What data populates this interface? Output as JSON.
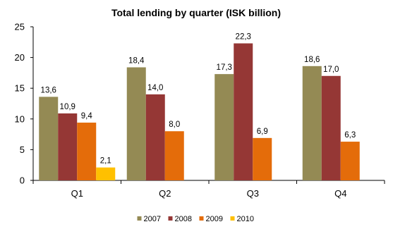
{
  "chart_data": {
    "type": "bar",
    "title": "Total lending by quarter (ISK billion)",
    "xlabel": "",
    "ylabel": "",
    "categories": [
      "Q1",
      "Q2",
      "Q3",
      "Q4"
    ],
    "ylim": [
      0,
      25
    ],
    "yticks": [
      0,
      5,
      10,
      15,
      20,
      25
    ],
    "grid": false,
    "legend_position": "bottom",
    "series": [
      {
        "name": "2007",
        "color": "#948A54",
        "values": [
          13.6,
          18.4,
          17.3,
          18.6
        ],
        "labels": [
          "13,6",
          "18,4",
          "17,3",
          "18,6"
        ]
      },
      {
        "name": "2008",
        "color": "#953735",
        "values": [
          10.9,
          14.0,
          22.3,
          17.0
        ],
        "labels": [
          "10,9",
          "14,0",
          "22,3",
          "17,0"
        ]
      },
      {
        "name": "2009",
        "color": "#E46C0A",
        "values": [
          9.4,
          8.0,
          6.9,
          6.3
        ],
        "labels": [
          "9,4",
          "8,0",
          "6,9",
          "6,3"
        ]
      },
      {
        "name": "2010",
        "color": "#FFC000",
        "values": [
          2.1,
          null,
          null,
          null
        ],
        "labels": [
          "2,1",
          null,
          null,
          null
        ]
      }
    ]
  }
}
